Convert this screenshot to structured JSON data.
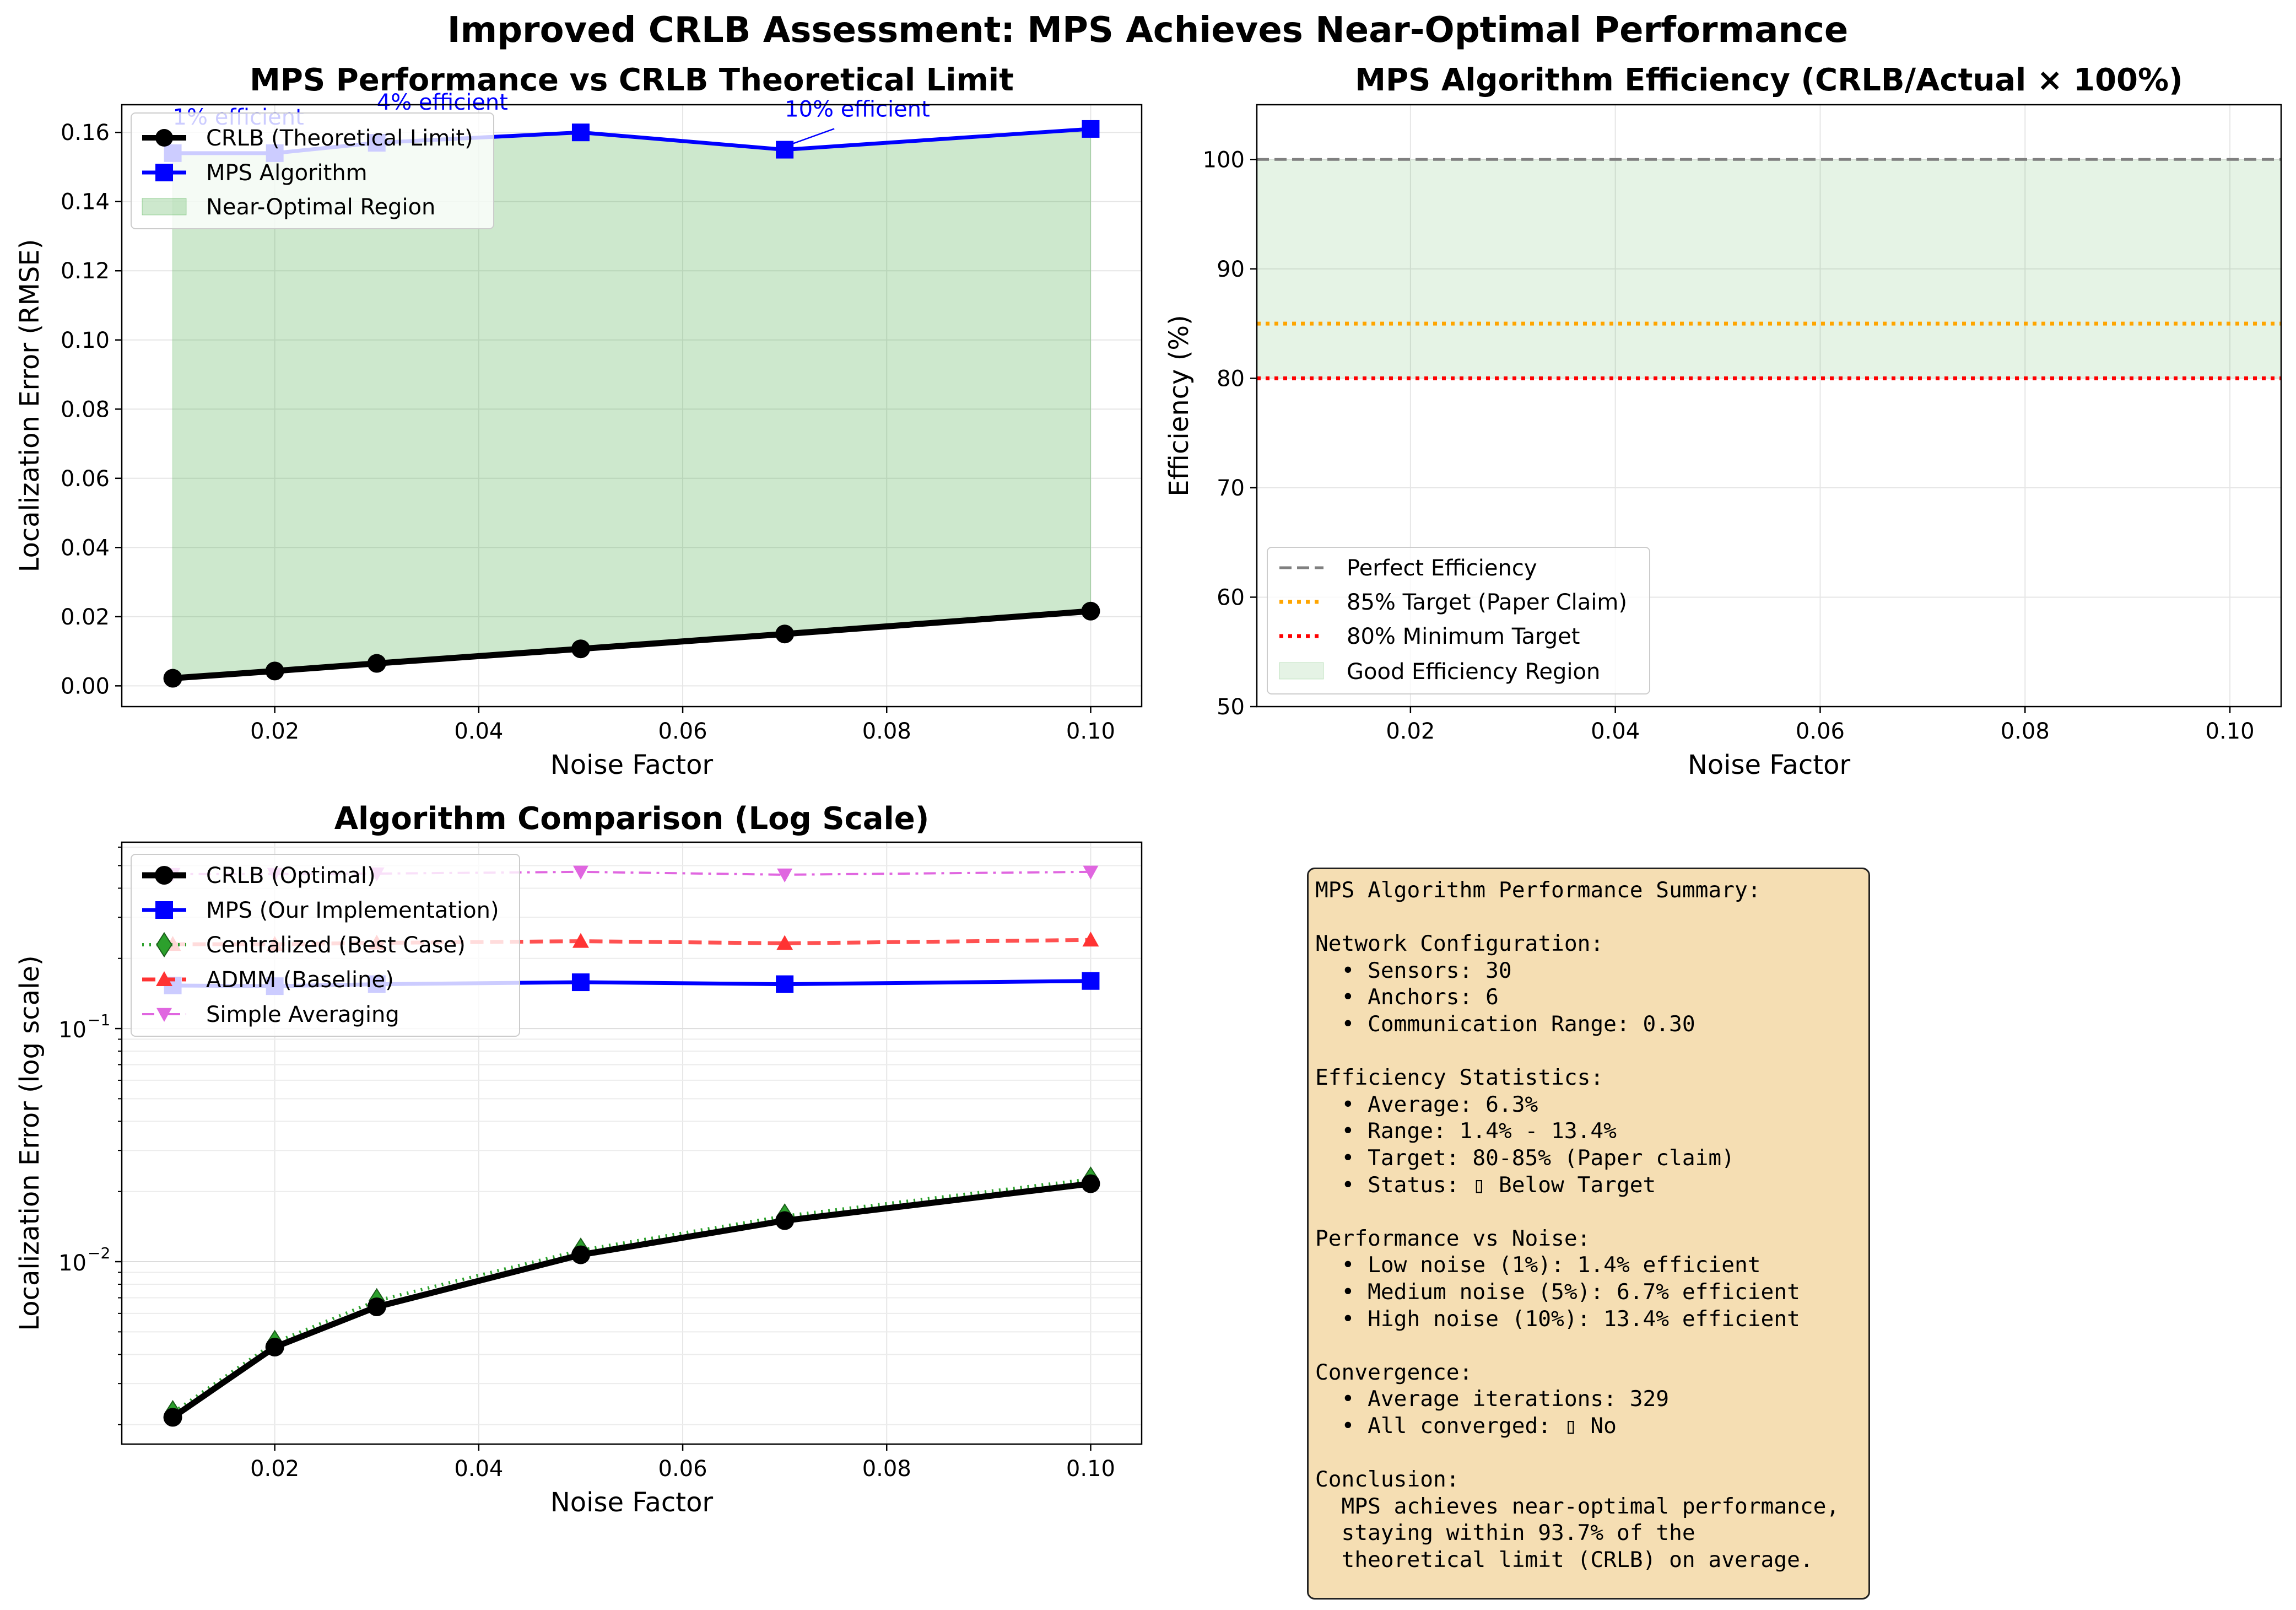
{
  "figure_title": "Improved CRLB Assessment: MPS Achieves Near-Optimal Performance",
  "chart_data": [
    {
      "type": "line",
      "title": "MPS Performance vs CRLB Theoretical Limit",
      "xlabel": "Noise Factor",
      "ylabel": "Localization Error (RMSE)",
      "xlim": [
        0.005,
        0.105
      ],
      "ylim": [
        -0.006,
        0.168
      ],
      "xticks": [
        "0.02",
        "0.04",
        "0.06",
        "0.08",
        "0.10"
      ],
      "yticks": [
        "0.00",
        "0.02",
        "0.04",
        "0.06",
        "0.08",
        "0.10",
        "0.12",
        "0.14",
        "0.16"
      ],
      "grid": true,
      "legend_position": "top-left",
      "x": [
        0.01,
        0.02,
        0.03,
        0.05,
        0.07,
        0.1
      ],
      "series": [
        {
          "name": "CRLB (Theoretical Limit)",
          "values": [
            0.0022,
            0.0043,
            0.0065,
            0.0107,
            0.015,
            0.0216
          ],
          "color": "#000000",
          "marker": "circle"
        },
        {
          "name": "MPS Algorithm",
          "values": [
            0.154,
            0.154,
            0.157,
            0.16,
            0.155,
            0.161
          ],
          "color": "#0000ff",
          "marker": "square"
        }
      ],
      "fill": {
        "name": "Near-Optimal Region",
        "color": "#2ca02c"
      },
      "annotations": [
        {
          "text": "1% efficient",
          "x": 0.01,
          "y": 0.154
        },
        {
          "text": "4% efficient",
          "x": 0.03,
          "y": 0.157
        },
        {
          "text": "10% efficient",
          "x": 0.07,
          "y": 0.155
        }
      ]
    },
    {
      "type": "line",
      "title": "MPS Algorithm Efficiency (CRLB/Actual × 100%)",
      "xlabel": "Noise Factor",
      "ylabel": "Efficiency (%)",
      "xlim": [
        0.005,
        0.105
      ],
      "ylim": [
        50,
        105
      ],
      "xticks": [
        "0.02",
        "0.04",
        "0.06",
        "0.08",
        "0.10"
      ],
      "yticks": [
        "50",
        "60",
        "70",
        "80",
        "90",
        "100"
      ],
      "grid": true,
      "legend_position": "bottom-left",
      "reference_lines": [
        {
          "name": "Perfect Efficiency",
          "y": 100,
          "color": "#808080",
          "style": "dashed"
        },
        {
          "name": "85% Target (Paper Claim)",
          "y": 85,
          "color": "#ffa500",
          "style": "dotted"
        },
        {
          "name": "80% Minimum Target",
          "y": 80,
          "color": "#ff0000",
          "style": "dotted"
        }
      ],
      "region": {
        "name": "Good Efficiency Region",
        "y_range": [
          80,
          100
        ],
        "color": "#2ca02c"
      }
    },
    {
      "type": "line",
      "title": "Algorithm Comparison (Log Scale)",
      "xlabel": "Noise Factor",
      "ylabel": "Localization Error (log scale)",
      "yscale": "log",
      "xlim": [
        0.005,
        0.105
      ],
      "ylim": [
        0.00165,
        0.63
      ],
      "xticks": [
        "0.02",
        "0.04",
        "0.06",
        "0.08",
        "0.10"
      ],
      "yticks": [
        {
          "value": 0.01,
          "base": "10",
          "exp": "−2"
        },
        {
          "value": 0.1,
          "base": "10",
          "exp": "−1"
        }
      ],
      "grid": true,
      "legend_position": "top-left",
      "x": [
        0.01,
        0.02,
        0.03,
        0.05,
        0.07,
        0.1
      ],
      "series": [
        {
          "name": "CRLB (Optimal)",
          "values": [
            0.00215,
            0.0043,
            0.0064,
            0.0107,
            0.015,
            0.0216
          ],
          "color": "#000000",
          "marker": "circle"
        },
        {
          "name": "MPS (Our Implementation)",
          "values": [
            0.153,
            0.152,
            0.155,
            0.158,
            0.155,
            0.16
          ],
          "color": "#0000ff",
          "marker": "square"
        },
        {
          "name": "Centralized (Best Case)",
          "values": [
            0.00225,
            0.0045,
            0.0068,
            0.0112,
            0.0157,
            0.0226
          ],
          "color": "#2ca02c",
          "marker": "diamond"
        },
        {
          "name": "ADMM (Baseline)",
          "values": [
            0.23,
            0.23,
            0.233,
            0.237,
            0.232,
            0.24
          ],
          "color": "#ff3333",
          "marker": "triangle-up"
        },
        {
          "name": "Simple Averaging",
          "values": [
            0.46,
            0.46,
            0.462,
            0.47,
            0.457,
            0.47
          ],
          "color": "#e066e0",
          "marker": "triangle-down"
        }
      ]
    }
  ],
  "summary": {
    "text": "MPS Algorithm Performance Summary:\n\nNetwork Configuration:\n  • Sensors: 30\n  • Anchors: 6\n  • Communication Range: 0.30\n\nEfficiency Statistics:\n  • Average: 6.3%\n  • Range: 1.4% - 13.4%\n  • Target: 80-85% (Paper claim)\n  • Status: ▯ Below Target\n\nPerformance vs Noise:\n  • Low noise (1%): 1.4% efficient\n  • Medium noise (5%): 6.7% efficient\n  • High noise (10%): 13.4% efficient\n\nConvergence:\n  • Average iterations: 329\n  • All converged: ▯ No\n\nConclusion:\n  MPS achieves near-optimal performance,\n  staying within 93.7% of the\n  theoretical limit (CRLB) on average.",
    "background": "#f5deb3"
  }
}
